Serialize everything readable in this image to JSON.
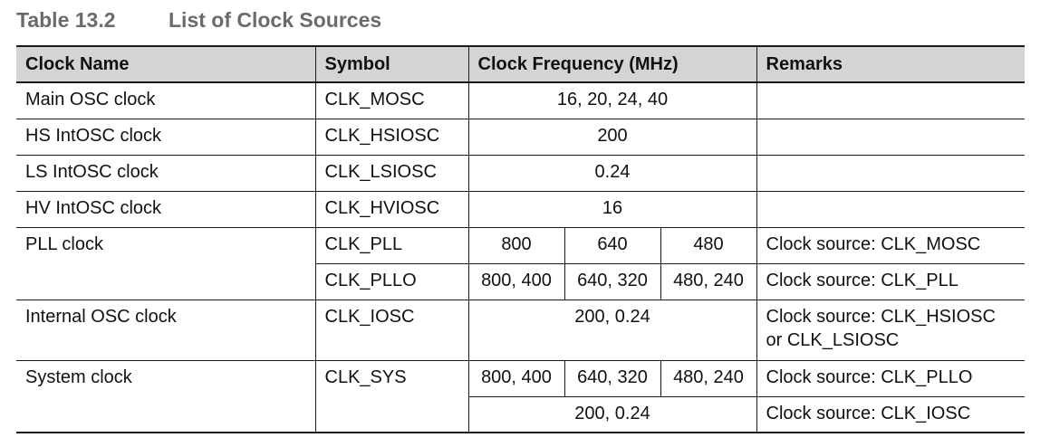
{
  "caption": {
    "number": "Table 13.2",
    "title": "List of Clock Sources"
  },
  "table": {
    "headers": [
      "Clock Name",
      "Symbol",
      "Clock Frequency (MHz)",
      "Remarks"
    ],
    "rows": {
      "main_osc": {
        "name": "Main OSC clock",
        "symbol": "CLK_MOSC",
        "freq": "16, 20, 24, 40",
        "remarks": ""
      },
      "hs_intosc": {
        "name": "HS IntOSC clock",
        "symbol": "CLK_HSIOSC",
        "freq": "200",
        "remarks": ""
      },
      "ls_intosc": {
        "name": "LS IntOSC clock",
        "symbol": "CLK_LSIOSC",
        "freq": "0.24",
        "remarks": ""
      },
      "hv_intosc": {
        "name": "HV IntOSC clock",
        "symbol": "CLK_HVIOSC",
        "freq": "16",
        "remarks": ""
      },
      "pll": {
        "name": "PLL clock",
        "sub": [
          {
            "symbol": "CLK_PLL",
            "f1": "800",
            "f2": "640",
            "f3": "480",
            "remarks": "Clock source: CLK_MOSC"
          },
          {
            "symbol": "CLK_PLLO",
            "f1": "800, 400",
            "f2": "640, 320",
            "f3": "480, 240",
            "remarks": "Clock source: CLK_PLL"
          }
        ]
      },
      "internal_osc": {
        "name": "Internal OSC clock",
        "symbol": "CLK_IOSC",
        "freq": "200, 0.24",
        "remarks_line1": "Clock source: CLK_HSIOSC",
        "remarks_line2": "or CLK_LSIOSC"
      },
      "system": {
        "name": "System clock",
        "symbol": "CLK_SYS",
        "sub": [
          {
            "f1": "800, 400",
            "f2": "640, 320",
            "f3": "480, 240",
            "remarks": "Clock source: CLK_PLLO"
          },
          {
            "freq": "200, 0.24",
            "remarks": "Clock source: CLK_IOSC"
          }
        ]
      }
    }
  }
}
